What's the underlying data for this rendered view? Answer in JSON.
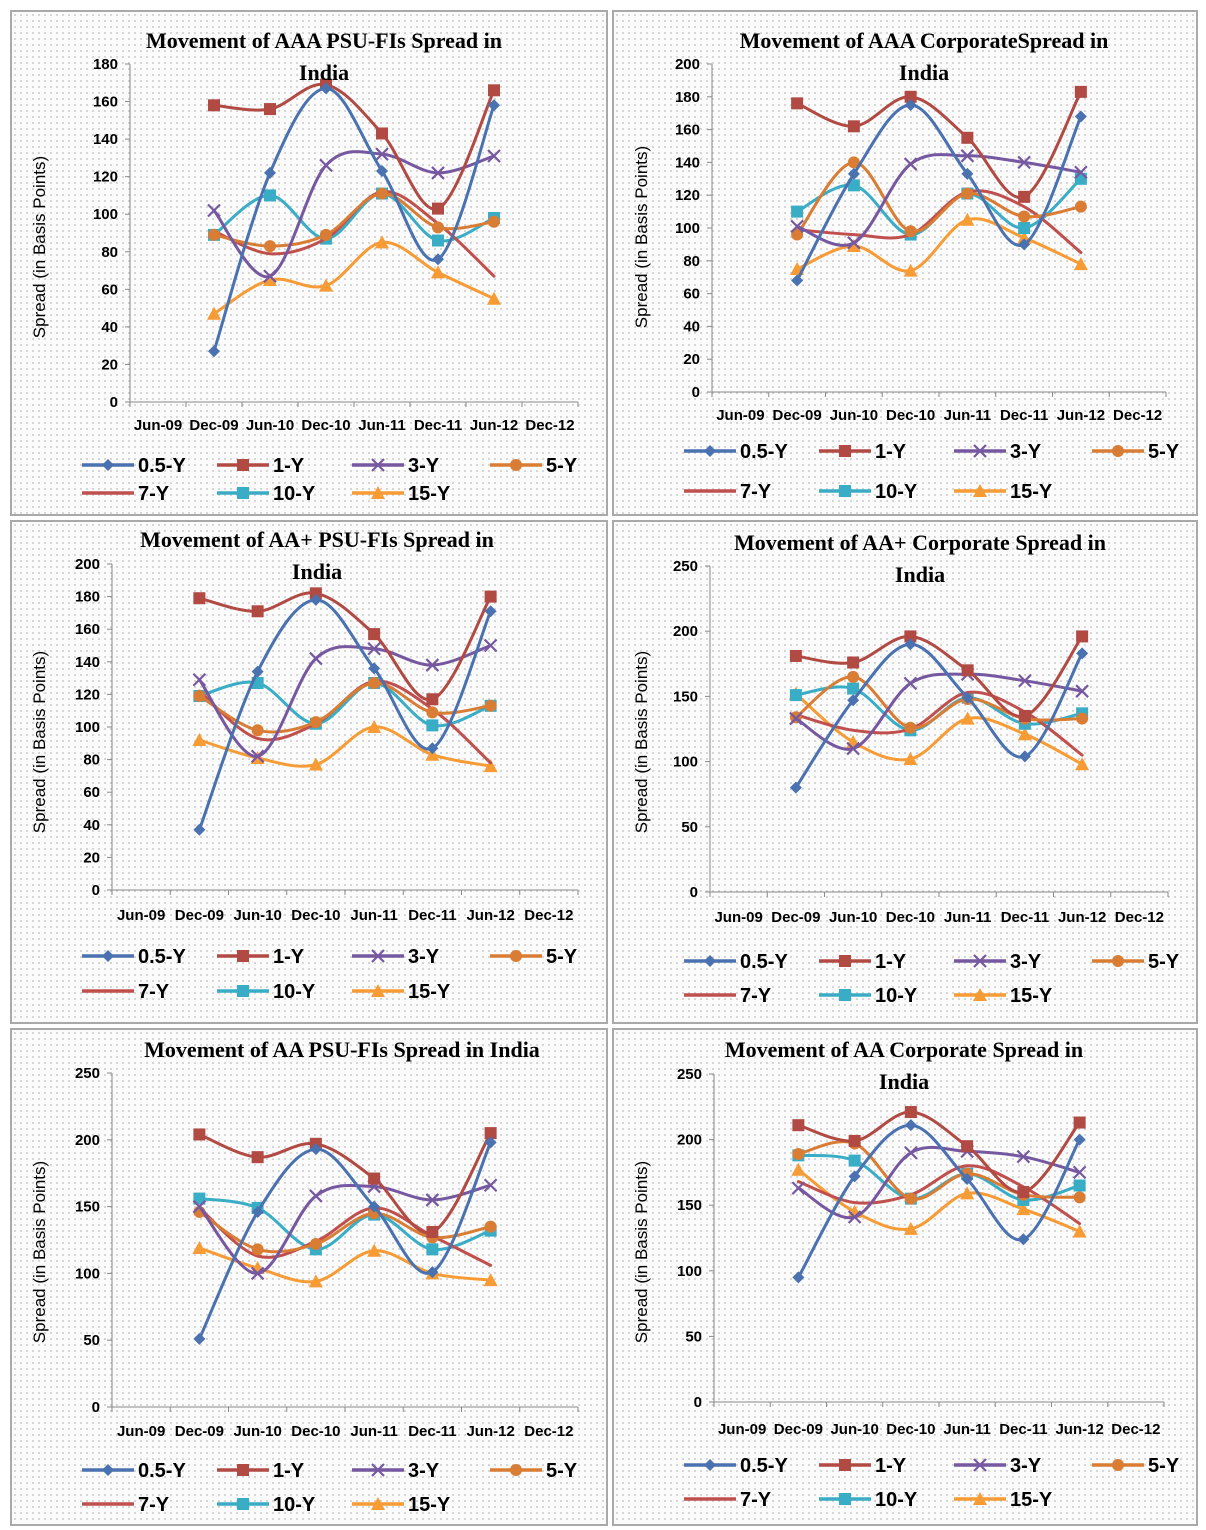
{
  "legend_labels": [
    "0.5-Y",
    "1-Y",
    "3-Y",
    "5-Y",
    "7-Y",
    "10-Y",
    "15-Y"
  ],
  "series_styles": [
    {
      "color": "#4a71b0",
      "marker": "diamond"
    },
    {
      "color": "#b24a44",
      "marker": "square"
    },
    {
      "color": "#7658a0",
      "marker": "x"
    },
    {
      "color": "#da7d34",
      "marker": "circle"
    },
    {
      "color": "#c0504d",
      "marker": "none"
    },
    {
      "color": "#3aadc6",
      "marker": "square"
    },
    {
      "color": "#f79b35",
      "marker": "triangle"
    }
  ],
  "chart_data": [
    {
      "type": "line",
      "title": [
        "Movement of AAA PSU-FIs Spread in",
        "India"
      ],
      "ylabel": "Spread (in Basis Points)",
      "categories": [
        "Jun-09",
        "Dec-09",
        "Jun-10",
        "Dec-10",
        "Jun-11",
        "Dec-11",
        "Jun-12",
        "Dec-12"
      ],
      "ylim": [
        0,
        180
      ],
      "yticks": [
        0,
        20,
        40,
        60,
        80,
        100,
        120,
        140,
        160,
        180
      ],
      "series": [
        {
          "name": "0.5-Y",
          "values": [
            null,
            27,
            122,
            167,
            123,
            76,
            158,
            null
          ]
        },
        {
          "name": "1-Y",
          "values": [
            null,
            158,
            156,
            169,
            143,
            103,
            166,
            null
          ]
        },
        {
          "name": "3-Y",
          "values": [
            null,
            102,
            67,
            126,
            132,
            122,
            131,
            null
          ]
        },
        {
          "name": "5-Y",
          "values": [
            null,
            89,
            83,
            89,
            111,
            93,
            96,
            null
          ]
        },
        {
          "name": "7-Y",
          "values": [
            null,
            91,
            79,
            87,
            112,
            95,
            67,
            null
          ]
        },
        {
          "name": "10-Y",
          "values": [
            null,
            89,
            110,
            87,
            111,
            86,
            98,
            null
          ]
        },
        {
          "name": "15-Y",
          "values": [
            null,
            47,
            65,
            62,
            85,
            69,
            55,
            null
          ]
        }
      ]
    },
    {
      "type": "line",
      "title": [
        "Movement of AAA CorporateSpread in",
        "India"
      ],
      "ylabel": "Spread (in Basis Points)",
      "categories": [
        "Jun-09",
        "Dec-09",
        "Jun-10",
        "Dec-10",
        "Jun-11",
        "Dec-11",
        "Jun-12",
        "Dec-12"
      ],
      "ylim": [
        0,
        200
      ],
      "yticks": [
        0,
        20,
        40,
        60,
        80,
        100,
        120,
        140,
        160,
        180,
        200
      ],
      "series": [
        {
          "name": "0.5-Y",
          "values": [
            null,
            68,
            133,
            175,
            133,
            90,
            168,
            null
          ]
        },
        {
          "name": "1-Y",
          "values": [
            null,
            176,
            162,
            180,
            155,
            119,
            183,
            null
          ]
        },
        {
          "name": "3-Y",
          "values": [
            null,
            101,
            91,
            139,
            144,
            140,
            134,
            null
          ]
        },
        {
          "name": "5-Y",
          "values": [
            null,
            96,
            140,
            98,
            121,
            107,
            113,
            null
          ]
        },
        {
          "name": "7-Y",
          "values": [
            null,
            99,
            96,
            96,
            122,
            113,
            85,
            null
          ]
        },
        {
          "name": "10-Y",
          "values": [
            null,
            110,
            126,
            96,
            121,
            100,
            130,
            null
          ]
        },
        {
          "name": "15-Y",
          "values": [
            null,
            75,
            89,
            74,
            105,
            94,
            78,
            null
          ]
        }
      ]
    },
    {
      "type": "line",
      "title": [
        "Movement of AA+ PSU-FIs Spread in",
        "India"
      ],
      "ylabel": "Spread (in Basis Points)",
      "categories": [
        "Jun-09",
        "Dec-09",
        "Jun-10",
        "Dec-10",
        "Jun-11",
        "Dec-11",
        "Jun-12",
        "Dec-12"
      ],
      "ylim": [
        0,
        200
      ],
      "yticks": [
        0,
        20,
        40,
        60,
        80,
        100,
        120,
        140,
        160,
        180,
        200
      ],
      "series": [
        {
          "name": "0.5-Y",
          "values": [
            null,
            37,
            134,
            178,
            136,
            87,
            171,
            null
          ]
        },
        {
          "name": "1-Y",
          "values": [
            null,
            179,
            171,
            182,
            157,
            117,
            180,
            null
          ]
        },
        {
          "name": "3-Y",
          "values": [
            null,
            129,
            82,
            142,
            148,
            138,
            150,
            null
          ]
        },
        {
          "name": "5-Y",
          "values": [
            null,
            119,
            98,
            103,
            127,
            109,
            113,
            null
          ]
        },
        {
          "name": "7-Y",
          "values": [
            null,
            122,
            93,
            102,
            128,
            111,
            78,
            null
          ]
        },
        {
          "name": "10-Y",
          "values": [
            null,
            119,
            127,
            102,
            127,
            101,
            113,
            null
          ]
        },
        {
          "name": "15-Y",
          "values": [
            null,
            92,
            81,
            77,
            100,
            83,
            76,
            null
          ]
        }
      ]
    },
    {
      "type": "line",
      "title": [
        "Movement of AA+ Corporate Spread in",
        "India"
      ],
      "ylabel": "Spread (in Basis Points)",
      "categories": [
        "Jun-09",
        "Dec-09",
        "Jun-10",
        "Dec-10",
        "Jun-11",
        "Dec-11",
        "Jun-12",
        "Dec-12"
      ],
      "ylim": [
        0,
        250
      ],
      "yticks": [
        0,
        50,
        100,
        150,
        200,
        250
      ],
      "series": [
        {
          "name": "0.5-Y",
          "values": [
            null,
            80,
            147,
            190,
            149,
            104,
            183,
            null
          ]
        },
        {
          "name": "1-Y",
          "values": [
            null,
            181,
            176,
            196,
            170,
            135,
            196,
            null
          ]
        },
        {
          "name": "3-Y",
          "values": [
            null,
            133,
            110,
            160,
            167,
            162,
            154,
            null
          ]
        },
        {
          "name": "5-Y",
          "values": [
            null,
            134,
            165,
            126,
            148,
            133,
            133,
            null
          ]
        },
        {
          "name": "7-Y",
          "values": [
            null,
            136,
            124,
            125,
            153,
            138,
            105,
            null
          ]
        },
        {
          "name": "10-Y",
          "values": [
            null,
            151,
            156,
            124,
            149,
            129,
            137,
            null
          ]
        },
        {
          "name": "15-Y",
          "values": [
            null,
            152,
            115,
            102,
            133,
            121,
            98,
            null
          ]
        }
      ]
    },
    {
      "type": "line",
      "title": [
        "Movement of AA PSU-FIs Spread in India"
      ],
      "ylabel": "Spread (in Basis Points)",
      "categories": [
        "Jun-09",
        "Dec-09",
        "Jun-10",
        "Dec-10",
        "Jun-11",
        "Dec-11",
        "Jun-12",
        "Dec-12"
      ],
      "ylim": [
        0,
        250
      ],
      "yticks": [
        0,
        50,
        100,
        150,
        200,
        250
      ],
      "series": [
        {
          "name": "0.5-Y",
          "values": [
            null,
            51,
            146,
            193,
            150,
            101,
            198,
            null
          ]
        },
        {
          "name": "1-Y",
          "values": [
            null,
            204,
            187,
            197,
            171,
            131,
            205,
            null
          ]
        },
        {
          "name": "3-Y",
          "values": [
            null,
            150,
            100,
            158,
            165,
            155,
            166,
            null
          ]
        },
        {
          "name": "5-Y",
          "values": [
            null,
            146,
            118,
            122,
            145,
            127,
            135,
            null
          ]
        },
        {
          "name": "7-Y",
          "values": [
            null,
            149,
            113,
            124,
            149,
            128,
            106,
            null
          ]
        },
        {
          "name": "10-Y",
          "values": [
            null,
            156,
            149,
            118,
            144,
            118,
            132,
            null
          ]
        },
        {
          "name": "15-Y",
          "values": [
            null,
            119,
            104,
            94,
            117,
            100,
            95,
            null
          ]
        }
      ]
    },
    {
      "type": "line",
      "title": [
        "Movement of AA Corporate Spread in",
        "India"
      ],
      "ylabel": "Spread (in Basis Points)",
      "categories": [
        "Jun-09",
        "Dec-09",
        "Jun-10",
        "Dec-10",
        "Jun-11",
        "Dec-11",
        "Jun-12",
        "Dec-12"
      ],
      "ylim": [
        0,
        250
      ],
      "yticks": [
        0,
        50,
        100,
        150,
        200,
        250
      ],
      "series": [
        {
          "name": "0.5-Y",
          "values": [
            null,
            95,
            172,
            211,
            170,
            124,
            200,
            null
          ]
        },
        {
          "name": "1-Y",
          "values": [
            null,
            211,
            199,
            221,
            195,
            160,
            213,
            null
          ]
        },
        {
          "name": "3-Y",
          "values": [
            null,
            163,
            141,
            190,
            191,
            187,
            175,
            null
          ]
        },
        {
          "name": "5-Y",
          "values": [
            null,
            189,
            197,
            155,
            174,
            158,
            156,
            null
          ]
        },
        {
          "name": "7-Y",
          "values": [
            null,
            168,
            152,
            158,
            180,
            164,
            136,
            null
          ]
        },
        {
          "name": "10-Y",
          "values": [
            null,
            188,
            184,
            155,
            174,
            154,
            165,
            null
          ]
        },
        {
          "name": "15-Y",
          "values": [
            null,
            177,
            145,
            132,
            159,
            147,
            130,
            null
          ]
        }
      ]
    }
  ]
}
